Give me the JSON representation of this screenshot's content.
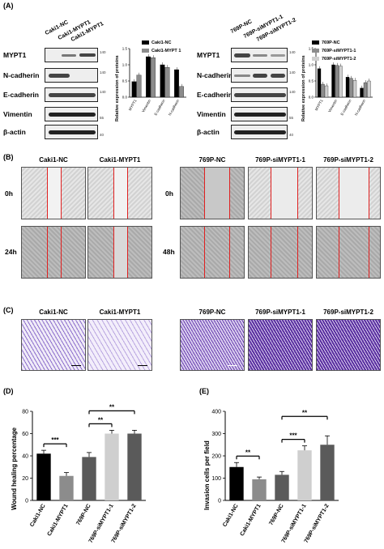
{
  "panels": {
    "A": "(A)",
    "B": "(B)",
    "C": "(C)",
    "D": "(D)",
    "E": "(E)"
  },
  "blots": {
    "left_cols": [
      "Caki1-NC",
      "Caki1-MYPT1"
    ],
    "left_col_extra": "Caki1-MYPT1",
    "right_cols": [
      "769P-NC",
      "769P-siMYPT1-1",
      "769P-siMYPT1-2"
    ],
    "rows": [
      "MYPT1",
      "N-cadherin",
      "E-cadherin",
      "Vimentin",
      "β-actin"
    ],
    "kda_left": [
      "140",
      "140",
      "140",
      "55",
      "40"
    ],
    "kda_right": [
      "140",
      "140",
      "140",
      "55",
      "40"
    ]
  },
  "bar_left": {
    "ylabel": "Relative expression of proteins",
    "legend": [
      "Caki1-NC",
      "Caki1-MYPT 1"
    ],
    "categories": [
      "MYPT1",
      "Vimentin",
      "E-cadherin",
      "N-cadherin"
    ],
    "ticks": [
      "0.0",
      "0.5",
      "1.0",
      "1.5"
    ]
  },
  "bar_right": {
    "ylabel": "Relative expression of proteins",
    "legend": [
      "769P-NC",
      "769P-siMYPT1-1",
      "769P-siMYPT1-2"
    ],
    "categories": [
      "MYPT1",
      "Vimentin",
      "E-cadherin",
      "N-cadherin"
    ],
    "ticks": [
      "0.0",
      "0.5",
      "1.0",
      "1.5"
    ]
  },
  "wound": {
    "cols_left": [
      "Caki1-NC",
      "Caki1-MYPT1"
    ],
    "cols_right": [
      "769P-NC",
      "769P-siMYPT1-1",
      "769P-siMYPT1-2"
    ],
    "rows_left": [
      "0h",
      "24h"
    ],
    "rows_right": [
      "0h",
      "48h"
    ]
  },
  "invasion": {
    "cols_left": [
      "Caki1-NC",
      "Caki1-MYPT1"
    ],
    "cols_right": [
      "769P-NC",
      "769P-siMYPT1-1",
      "769P-siMYPT1-2"
    ]
  },
  "colors": {
    "black": "#000000",
    "gray": "#8c8c8c",
    "light": "#cfcfcf",
    "dark": "#5a5a5a",
    "red": "#e02020",
    "purple": "#6a3fb0"
  },
  "chart_data": [
    {
      "type": "bar",
      "title": "",
      "categories": [
        "MYPT1",
        "Vimentin",
        "E-cadherin",
        "N-cadherin"
      ],
      "series": [
        {
          "name": "Caki1-NC",
          "values": [
            0.48,
            1.25,
            1.0,
            0.85
          ]
        },
        {
          "name": "Caki1-MYPT 1",
          "values": [
            0.68,
            1.22,
            0.92,
            0.33
          ]
        }
      ],
      "ylabel": "Relative expression of proteins",
      "ylim": [
        0,
        1.5
      ],
      "legend": "top-right"
    },
    {
      "type": "bar",
      "title": "",
      "categories": [
        "MYPT1",
        "Vimentin",
        "E-cadherin",
        "N-cadherin"
      ],
      "series": [
        {
          "name": "769P-NC",
          "values": [
            0.88,
            1.0,
            0.62,
            0.28
          ]
        },
        {
          "name": "769P-siMYPT1-1",
          "values": [
            0.4,
            0.98,
            0.58,
            0.45
          ]
        },
        {
          "name": "769P-siMYPT1-2",
          "values": [
            0.35,
            0.96,
            0.52,
            0.5
          ]
        }
      ],
      "ylabel": "Relative expression of proteins",
      "ylim": [
        0,
        1.5
      ],
      "legend": "top-right"
    },
    {
      "type": "bar",
      "title": "",
      "categories": [
        "Caki1-NC",
        "Caki1-MYPT1",
        "769P-NC",
        "769P-siMYPT1-1",
        "769P-siMYPT1-2"
      ],
      "values": [
        42,
        22,
        39,
        60,
        60
      ],
      "errors": [
        3,
        3,
        4,
        3,
        3
      ],
      "ylabel": "Wound healing percentage",
      "ylim": [
        0,
        80
      ],
      "ticks": [
        "0",
        "20",
        "40",
        "60",
        "80"
      ],
      "significance": [
        {
          "from": 0,
          "to": 1,
          "label": "***"
        },
        {
          "from": 2,
          "to": 3,
          "label": "**"
        },
        {
          "from": 2,
          "to": 4,
          "label": "**"
        }
      ]
    },
    {
      "type": "bar",
      "title": "",
      "categories": [
        "Caki1-NC",
        "Caki1-MYPT1",
        "769P-NC",
        "769P-siMYPT1-1",
        "769P-siMYPT1-2"
      ],
      "values": [
        150,
        95,
        115,
        225,
        250
      ],
      "errors": [
        20,
        10,
        15,
        20,
        40
      ],
      "ylabel": "Invasion cells per field",
      "ylim": [
        0,
        400
      ],
      "ticks": [
        "0",
        "100",
        "200",
        "300",
        "400"
      ],
      "significance": [
        {
          "from": 0,
          "to": 1,
          "label": "**"
        },
        {
          "from": 2,
          "to": 3,
          "label": "***"
        },
        {
          "from": 2,
          "to": 4,
          "label": "**"
        }
      ]
    }
  ]
}
